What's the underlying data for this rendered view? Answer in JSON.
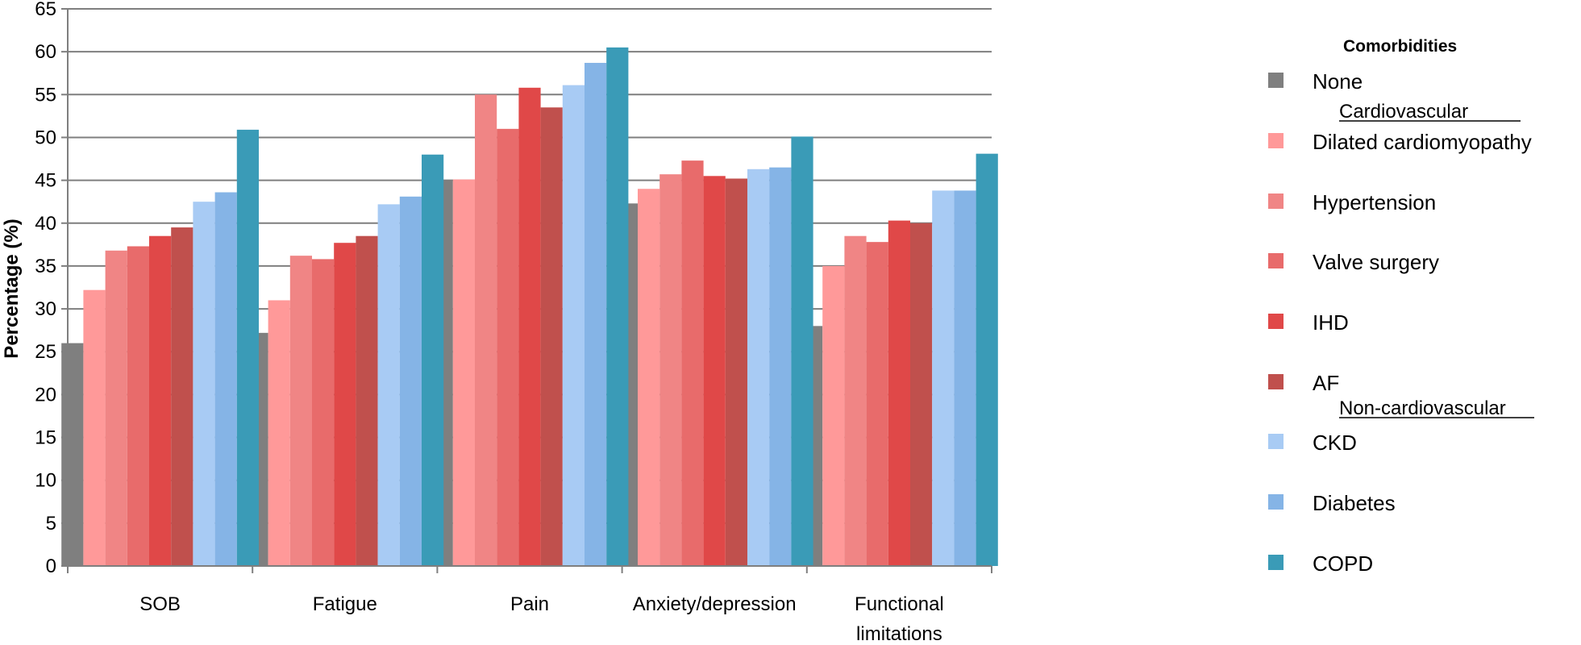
{
  "chart_data": {
    "type": "bar",
    "ylabel": "Percentage (%)",
    "ylim": [
      0,
      65
    ],
    "yticks": [
      0,
      5,
      10,
      15,
      20,
      25,
      30,
      35,
      40,
      45,
      50,
      55,
      60,
      65
    ],
    "grid": true,
    "legend_position": "right",
    "categories": [
      "SOB",
      "Fatigue",
      "Pain",
      "Anxiety/depression",
      [
        "Functional",
        "limitations"
      ]
    ],
    "series": [
      {
        "name": "None",
        "color": "#7f7f7f",
        "values": [
          26,
          27.2,
          45,
          42.3,
          28
        ]
      },
      {
        "name": "Dilated cardiomyopathy",
        "color": "#ff9999",
        "values": [
          32.2,
          31,
          45.1,
          44,
          35
        ]
      },
      {
        "name": "Hypertension",
        "color": "#f08585",
        "values": [
          36.8,
          36.2,
          55,
          45.7,
          38.5
        ]
      },
      {
        "name": "Valve surgery",
        "color": "#e86b6b",
        "values": [
          37.3,
          35.8,
          51,
          47.3,
          37.8
        ]
      },
      {
        "name": "IHD",
        "color": "#e04848",
        "values": [
          38.5,
          37.7,
          55.8,
          45.5,
          40.3
        ]
      },
      {
        "name": "AF",
        "color": "#c0504d",
        "values": [
          39.5,
          38.5,
          53.5,
          45.2,
          40
        ]
      },
      {
        "name": "CKD",
        "color": "#a8cbf4",
        "values": [
          42.5,
          42.2,
          56.1,
          46.3,
          43.8
        ]
      },
      {
        "name": "Diabetes",
        "color": "#85b4e6",
        "values": [
          43.6,
          43.1,
          58.7,
          46.5,
          43.8
        ]
      },
      {
        "name": "COPD",
        "color": "#3a9bb7",
        "values": [
          50.9,
          48,
          60.5,
          50.1,
          48.1
        ]
      }
    ],
    "legend": {
      "title": "Comorbidities",
      "subheads": [
        "Cardiovascular",
        "Non-cardiovascular"
      ]
    }
  }
}
